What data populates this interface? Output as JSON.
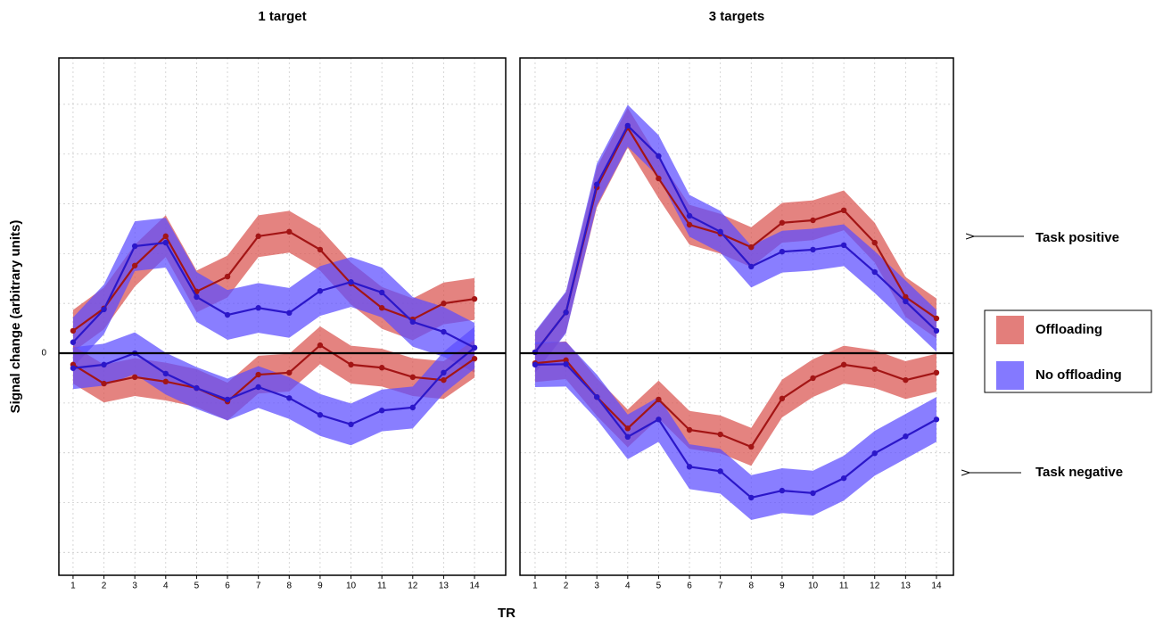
{
  "figure": {
    "xlabel": "TR",
    "ylabel": "Signal change (arbitrary units)",
    "legend": [
      {
        "name": "Offloading",
        "color": "#d9534f",
        "line_color": "#a31515"
      },
      {
        "name": "No offloading",
        "color": "#5b4cff",
        "line_color": "#2b17c9"
      }
    ],
    "annotations": [
      "Task positive",
      "Task negative"
    ]
  },
  "chart_data": [
    {
      "type": "line",
      "title": "1 target",
      "x": [
        1,
        2,
        3,
        4,
        5,
        6,
        7,
        8,
        9,
        10,
        11,
        12,
        13,
        14
      ],
      "xlim": [
        0.54,
        15.01
      ],
      "xticks": [
        1,
        2,
        3,
        4,
        5,
        6,
        7,
        8,
        9,
        10,
        11,
        12,
        13,
        14
      ],
      "ylim": [
        -4.46,
        5.93
      ],
      "yticks": [
        0
      ],
      "ygrid": [
        -4,
        -3,
        -2,
        -1,
        1,
        2,
        3,
        4,
        5
      ],
      "grid": true,
      "zero_line": true,
      "series": [
        {
          "legend_index": 0,
          "error": 0.42,
          "values": [
            0.45,
            0.9,
            1.76,
            2.35,
            1.24,
            1.54,
            2.35,
            2.44,
            2.08,
            1.4,
            0.91,
            0.68,
            1.0,
            1.09
          ]
        },
        {
          "legend_index": 1,
          "error": 0.5,
          "values": [
            0.22,
            0.88,
            2.15,
            2.22,
            1.13,
            0.77,
            0.91,
            0.81,
            1.25,
            1.43,
            1.22,
            0.63,
            0.43,
            0.11
          ]
        },
        {
          "legend_index": 0,
          "error": 0.38,
          "values": [
            -0.23,
            -0.61,
            -0.48,
            -0.57,
            -0.7,
            -0.97,
            -0.43,
            -0.39,
            0.16,
            -0.23,
            -0.29,
            -0.48,
            -0.54,
            -0.11
          ]
        },
        {
          "legend_index": 1,
          "error": 0.42,
          "values": [
            -0.3,
            -0.23,
            0,
            -0.41,
            -0.7,
            -0.93,
            -0.68,
            -0.9,
            -1.24,
            -1.43,
            -1.15,
            -1.09,
            -0.39,
            0.11
          ]
        }
      ]
    },
    {
      "type": "line",
      "title": "3 targets",
      "x": [
        1,
        2,
        3,
        4,
        5,
        6,
        7,
        8,
        9,
        10,
        11,
        12,
        13,
        14
      ],
      "xlim": [
        0.51,
        14.55
      ],
      "xticks": [
        1,
        2,
        3,
        4,
        5,
        6,
        7,
        8,
        9,
        10,
        11,
        12,
        13,
        14
      ],
      "ylim": [
        -4.46,
        5.93
      ],
      "yticks": [],
      "ygrid": [
        -4,
        -3,
        -2,
        -1,
        1,
        2,
        3,
        4,
        5
      ],
      "grid": true,
      "zero_line": true,
      "series": [
        {
          "legend_index": 0,
          "error": 0.4,
          "values": [
            0.02,
            0.82,
            3.33,
            4.53,
            3.51,
            2.58,
            2.4,
            2.13,
            2.62,
            2.67,
            2.87,
            2.22,
            1.13,
            0.7
          ]
        },
        {
          "legend_index": 1,
          "error": 0.42,
          "values": [
            0.02,
            0.82,
            3.39,
            4.57,
            3.96,
            2.76,
            2.44,
            1.74,
            2.04,
            2.08,
            2.17,
            1.63,
            1.04,
            0.45
          ]
        },
        {
          "legend_index": 0,
          "error": 0.38,
          "values": [
            -0.2,
            -0.14,
            -0.88,
            -1.51,
            -0.93,
            -1.54,
            -1.63,
            -1.88,
            -0.91,
            -0.5,
            -0.23,
            -0.32,
            -0.54,
            -0.39
          ]
        },
        {
          "legend_index": 1,
          "error": 0.45,
          "values": [
            -0.23,
            -0.22,
            -0.88,
            -1.68,
            -1.33,
            -2.28,
            -2.37,
            -2.9,
            -2.76,
            -2.81,
            -2.51,
            -2.01,
            -1.67,
            -1.33
          ]
        }
      ]
    }
  ]
}
